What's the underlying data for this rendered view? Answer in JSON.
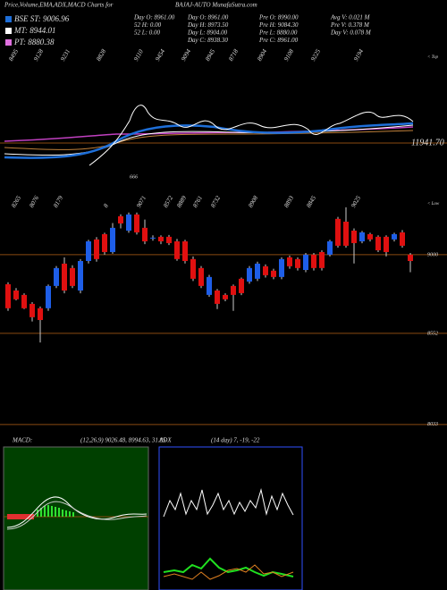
{
  "header": {
    "title": "Price,Volume,EMA,ADX,MACD Charts for",
    "symbol": "BAJAJ-AUTO MunafaSutra.com"
  },
  "legend": [
    {
      "label": "BSE ST: 9006.96",
      "color": "#1e6fd9"
    },
    {
      "label": "MT: 8944.01",
      "color": "#ffffff"
    },
    {
      "label": "PT: 8880.38",
      "color": "#e070e0"
    }
  ],
  "stats": [
    [
      "Day O: 8961.00",
      "52 H: 0.00",
      "52 L: 0.00"
    ],
    [
      "Day O: 8961.00",
      "Day H: 8973.50",
      "Day L: 8904.00",
      "Day C: 8938.30"
    ],
    [
      "Pre O: 8990.00",
      "Pre H: 9084.30",
      "Pre L: 8880.00",
      "Pre C: 8961.00"
    ],
    [
      "Avg V: 0.021 M",
      "Pre V: 0.378 M",
      "Day V: 0.078 M"
    ]
  ],
  "top_panel": {
    "level_label": "11941.70",
    "corner_label": "< Top",
    "point_labels": [
      "8495",
      "9128",
      "9231",
      "8828",
      "9110",
      "9454",
      "9094",
      "8945",
      "8718",
      "8904",
      "9108",
      "9225",
      "9194"
    ]
  },
  "chart_data": {
    "type": "candlestick",
    "up_color": "#1e5ee8",
    "down_color": "#e01010",
    "corner_label": "< Low",
    "mid_label": "666",
    "point_labels": [
      "8265",
      "8076",
      "8179",
      "8",
      "9071",
      "8572",
      "8889",
      "8761",
      "8732",
      "8908",
      "8893",
      "8845",
      "9025"
    ],
    "ylim": [
      7956,
      9305
    ],
    "yticks": [
      9000,
      8552,
      8033
    ],
    "candles": [
      {
        "open": 8832,
        "high": 8843,
        "low": 8680,
        "close": 8695
      },
      {
        "open": 8796,
        "high": 8810,
        "low": 8740,
        "close": 8746
      },
      {
        "open": 8771,
        "high": 8780,
        "low": 8690,
        "close": 8695
      },
      {
        "open": 8720,
        "high": 8730,
        "low": 8620,
        "close": 8644
      },
      {
        "open": 8695,
        "high": 8705,
        "low": 8500,
        "close": 8628
      },
      {
        "open": 8695,
        "high": 8830,
        "low": 8680,
        "close": 8822
      },
      {
        "open": 8822,
        "high": 8935,
        "low": 8810,
        "close": 8924
      },
      {
        "open": 8949,
        "high": 8985,
        "low": 8780,
        "close": 8796
      },
      {
        "open": 8924,
        "high": 8940,
        "low": 8810,
        "close": 8822
      },
      {
        "open": 8796,
        "high": 8975,
        "low": 8780,
        "close": 8964
      },
      {
        "open": 8964,
        "high": 9085,
        "low": 8950,
        "close": 9076
      },
      {
        "open": 9087,
        "high": 9100,
        "low": 8960,
        "close": 8975
      },
      {
        "open": 9117,
        "high": 9125,
        "low": 9000,
        "close": 9015
      },
      {
        "open": 9015,
        "high": 9180,
        "low": 9005,
        "close": 9153
      },
      {
        "open": 9219,
        "high": 9230,
        "low": 9150,
        "close": 9178
      },
      {
        "open": 9137,
        "high": 9240,
        "low": 9125,
        "close": 9229
      },
      {
        "open": 9229,
        "high": 9240,
        "low": 9115,
        "close": 9127
      },
      {
        "open": 9153,
        "high": 9200,
        "low": 9060,
        "close": 9076
      },
      {
        "open": 9092,
        "high": 9110,
        "low": 9080,
        "close": 9097
      },
      {
        "open": 9102,
        "high": 9110,
        "low": 9060,
        "close": 9076
      },
      {
        "open": 9102,
        "high": 9112,
        "low": 9055,
        "close": 9066
      },
      {
        "open": 9076,
        "high": 9090,
        "low": 8965,
        "close": 8975
      },
      {
        "open": 9076,
        "high": 9085,
        "low": 8950,
        "close": 8964
      },
      {
        "open": 8975,
        "high": 8990,
        "low": 8850,
        "close": 8863
      },
      {
        "open": 8924,
        "high": 8935,
        "low": 8810,
        "close": 8822
      },
      {
        "open": 8771,
        "high": 8885,
        "low": 8760,
        "close": 8873
      },
      {
        "open": 8796,
        "high": 8805,
        "low": 8690,
        "close": 8720
      },
      {
        "open": 8771,
        "high": 8780,
        "low": 8735,
        "close": 8746
      },
      {
        "open": 8822,
        "high": 8830,
        "low": 8680,
        "close": 8771
      },
      {
        "open": 8863,
        "high": 8870,
        "low": 8770,
        "close": 8781
      },
      {
        "open": 8847,
        "high": 8935,
        "low": 8835,
        "close": 8924
      },
      {
        "open": 8863,
        "high": 8960,
        "low": 8850,
        "close": 8949
      },
      {
        "open": 8934,
        "high": 8945,
        "low": 8870,
        "close": 8883
      },
      {
        "open": 8909,
        "high": 8920,
        "low": 8860,
        "close": 8873
      },
      {
        "open": 8873,
        "high": 8985,
        "low": 8860,
        "close": 8975
      },
      {
        "open": 8985,
        "high": 8995,
        "low": 8920,
        "close": 8934
      },
      {
        "open": 8975,
        "high": 8985,
        "low": 8910,
        "close": 8924
      },
      {
        "open": 8913,
        "high": 9010,
        "low": 8900,
        "close": 9000
      },
      {
        "open": 9000,
        "high": 9010,
        "low": 8910,
        "close": 8924
      },
      {
        "open": 9015,
        "high": 9025,
        "low": 8910,
        "close": 8924
      },
      {
        "open": 9000,
        "high": 9085,
        "low": 8990,
        "close": 9076
      },
      {
        "open": 9204,
        "high": 9215,
        "low": 9040,
        "close": 9051
      },
      {
        "open": 9188,
        "high": 9270,
        "low": 9040,
        "close": 9051
      },
      {
        "open": 9137,
        "high": 9150,
        "low": 8950,
        "close": 9066
      },
      {
        "open": 9076,
        "high": 9135,
        "low": 9065,
        "close": 9127
      },
      {
        "open": 9117,
        "high": 9125,
        "low": 9075,
        "close": 9087
      },
      {
        "open": 9102,
        "high": 9110,
        "low": 9015,
        "close": 9025
      },
      {
        "open": 9102,
        "high": 9110,
        "low": 8990,
        "close": 9015
      },
      {
        "open": 9087,
        "high": 9125,
        "low": 9075,
        "close": 9117
      },
      {
        "open": 9127,
        "high": 9140,
        "low": 9040,
        "close": 9051
      },
      {
        "open": 9000,
        "high": 9010,
        "low": 8900,
        "close": 8964
      }
    ]
  },
  "macd": {
    "label": "MACD:",
    "params": "(12,26,9) 9026.48, 8994.63, 31.85"
  },
  "adx": {
    "label": "ADX",
    "params": "(14 day) 7, -19, -22"
  }
}
